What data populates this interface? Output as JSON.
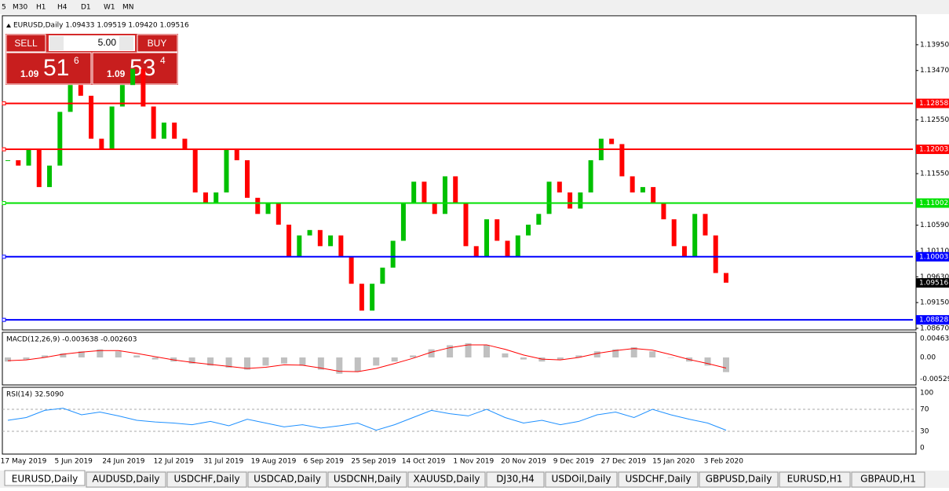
{
  "toolbar": {
    "timeframes": [
      "5",
      "M30",
      "H1",
      "H4",
      "D1",
      "W1",
      "MN"
    ]
  },
  "chart_header": "EURUSD,Daily  1.09433 1.09519 1.09420 1.09516",
  "trade_panel": {
    "sell": "SELL",
    "buy": "BUY",
    "lot": "5.00",
    "sell_price": {
      "prefix": "1.09",
      "main": "51",
      "sup": "6"
    },
    "buy_price": {
      "prefix": "1.09",
      "main": "53",
      "sup": "4"
    }
  },
  "chart_data": {
    "type": "candlestick",
    "ylim": [
      1.0864,
      1.1449
    ],
    "yticks": [
      {
        "value": 1.1395,
        "label": "1.13950"
      },
      {
        "value": 1.1347,
        "label": "1.13470"
      },
      {
        "value": 1.1255,
        "label": "1.12550"
      },
      {
        "value": 1.1155,
        "label": "1.11550"
      },
      {
        "value": 1.1059,
        "label": "1.10590"
      },
      {
        "value": 1.1011,
        "label": "1.10110"
      },
      {
        "value": 1.0963,
        "label": "1.09630"
      },
      {
        "value": 1.0915,
        "label": "1.09150"
      },
      {
        "value": 1.0867,
        "label": "1.08670"
      }
    ],
    "levels": [
      {
        "value": 1.12858,
        "label": "1.12858",
        "color": "#ff0000"
      },
      {
        "value": 1.12003,
        "label": "1.12003",
        "color": "#ff0000"
      },
      {
        "value": 1.11002,
        "label": "1.11002",
        "color": "#00e000"
      },
      {
        "value": 1.10003,
        "label": "1.10003",
        "color": "#0000ff"
      },
      {
        "value": 1.08828,
        "label": "1.08828",
        "color": "#0000ff"
      }
    ],
    "current_price": {
      "value": 1.09516,
      "label": "1.09516"
    },
    "closes": [
      1.118,
      1.117,
      1.12,
      1.113,
      1.117,
      1.127,
      1.132,
      1.13,
      1.122,
      1.12,
      1.128,
      1.132,
      1.135,
      1.128,
      1.122,
      1.125,
      1.122,
      1.12,
      1.112,
      1.11,
      1.112,
      1.12,
      1.118,
      1.111,
      1.108,
      1.11,
      1.106,
      1.1,
      1.104,
      1.105,
      1.102,
      1.104,
      1.1,
      1.095,
      1.09,
      1.095,
      1.098,
      1.103,
      1.11,
      1.114,
      1.11,
      1.108,
      1.115,
      1.11,
      1.102,
      1.1,
      1.107,
      1.103,
      1.1,
      1.104,
      1.106,
      1.108,
      1.114,
      1.112,
      1.109,
      1.112,
      1.118,
      1.122,
      1.121,
      1.115,
      1.112,
      1.113,
      1.11,
      1.107,
      1.102,
      1.1,
      1.108,
      1.104,
      1.097,
      1.0952
    ],
    "up_color": "#00c000",
    "down_color": "#ff0000",
    "x_labels": [
      "17 May 2019",
      "5 Jun 2019",
      "24 Jun 2019",
      "12 Jul 2019",
      "31 Jul 2019",
      "19 Aug 2019",
      "6 Sep 2019",
      "25 Sep 2019",
      "14 Oct 2019",
      "1 Nov 2019",
      "20 Nov 2019",
      "9 Dec 2019",
      "27 Dec 2019",
      "15 Jan 2020",
      "3 Feb 2020"
    ]
  },
  "macd": {
    "title": "MACD(12,26,9) -0.003638 -0.002603",
    "ylim": [
      -0.00675,
      0.00579
    ],
    "yticks": [
      {
        "value": 0.00463,
        "label": "0.00463"
      },
      {
        "value": 0,
        "label": "0.00"
      },
      {
        "value": -0.005299,
        "label": "-0.005299"
      }
    ],
    "histogram": [
      -0.001,
      -0.0005,
      0.0005,
      0.001,
      0.0015,
      0.002,
      0.0015,
      0.0005,
      -0.0005,
      -0.001,
      -0.0015,
      -0.002,
      -0.0025,
      -0.003,
      -0.002,
      -0.0015,
      -0.002,
      -0.003,
      -0.004,
      -0.0035,
      -0.002,
      -0.001,
      0.0005,
      0.002,
      0.003,
      0.0035,
      0.003,
      0.001,
      -0.0005,
      -0.001,
      -0.0005,
      0.0005,
      0.0015,
      0.002,
      0.0025,
      0.0015,
      0.0,
      -0.001,
      -0.002,
      -0.0036
    ],
    "signal": [
      -0.0008,
      -0.0006,
      0,
      0.0008,
      0.0013,
      0.0017,
      0.0017,
      0.001,
      0.0002,
      -0.0006,
      -0.0012,
      -0.0017,
      -0.0022,
      -0.0027,
      -0.0024,
      -0.0018,
      -0.0019,
      -0.0026,
      -0.0034,
      -0.0035,
      -0.0027,
      -0.0015,
      -0.0002,
      0.0013,
      0.0024,
      0.0031,
      0.0031,
      0.002,
      0.0006,
      -0.0004,
      -0.0006,
      0,
      0.001,
      0.0017,
      0.0022,
      0.0018,
      0.0007,
      -0.0005,
      -0.0015,
      -0.0026
    ],
    "hist_color": "#c0c0c0",
    "signal_color": "#ff0000"
  },
  "rsi": {
    "title": "RSI(14) 32.5090",
    "ylim": [
      -11.4,
      110
    ],
    "yticks": [
      100,
      70,
      30,
      0
    ],
    "levels": [
      70,
      30
    ],
    "values": [
      50,
      55,
      68,
      72,
      60,
      65,
      58,
      50,
      47,
      45,
      42,
      48,
      40,
      52,
      45,
      38,
      42,
      36,
      40,
      45,
      32,
      42,
      55,
      68,
      62,
      58,
      70,
      55,
      45,
      50,
      42,
      48,
      60,
      65,
      55,
      70,
      60,
      52,
      45,
      32
    ],
    "color": "#1e90ff"
  },
  "tabs": [
    "EURUSD,Daily",
    "AUDUSD,Daily",
    "USDCHF,Daily",
    "USDCAD,Daily",
    "USDCNH,Daily",
    "XAUUSD,Daily",
    "DJ30,H4",
    "USDOil,Daily",
    "USDCHF,Daily",
    "GBPUSD,Daily",
    "EURUSD,H1",
    "GBPAUD,H1"
  ]
}
